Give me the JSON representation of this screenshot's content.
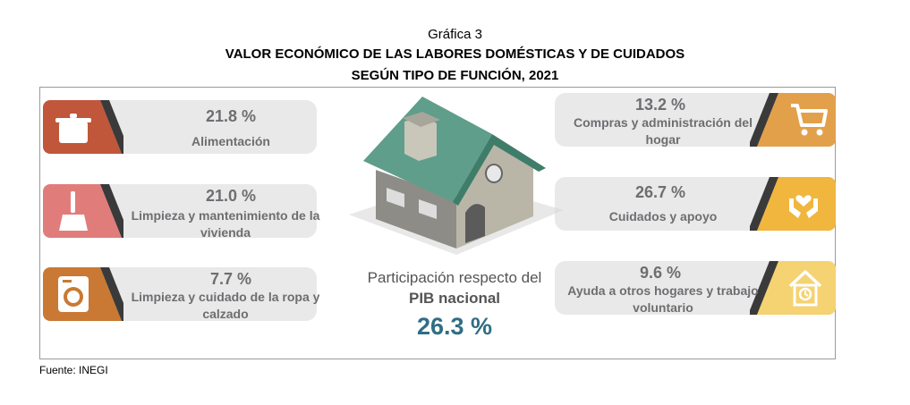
{
  "header": {
    "chart_number": "Gráfica 3",
    "title_line1": "VALOR ECONÓMICO DE LAS LABORES DOMÉSTICAS Y DE CUIDADOS",
    "title_line2": "SEGÚN TIPO DE FUNCIÓN, 2021"
  },
  "chart_data": {
    "type": "infographic",
    "title": "VALOR ECONÓMICO DE LAS LABORES DOMÉSTICAS Y DE CUIDADOS SEGÚN TIPO DE FUNCIÓN, 2021",
    "unit": "%",
    "categories": [
      {
        "label": "Alimentación",
        "value": 21.8,
        "pct_text": "21.8 %",
        "color": "#c0573a",
        "icon": "cooking-pot-icon"
      },
      {
        "label": "Limpieza y mantenimiento de la vivienda",
        "value": 21.0,
        "pct_text": "21.0 %",
        "color": "#e07d7b",
        "icon": "broom-icon"
      },
      {
        "label": "Limpieza y cuidado de la ropa y calzado",
        "value": 7.7,
        "pct_text": "7.7 %",
        "color": "#c97933",
        "icon": "washing-machine-icon"
      },
      {
        "label": "Compras y administración del hogar",
        "value": 13.2,
        "pct_text": "13.2 %",
        "color": "#e3a04a",
        "icon": "shopping-cart-icon"
      },
      {
        "label": "Cuidados y apoyo",
        "value": 26.7,
        "pct_text": "26.7 %",
        "color": "#f0b63e",
        "icon": "caring-hands-icon"
      },
      {
        "label": "Ayuda a otros hogares y trabajo voluntario",
        "value": 9.6,
        "pct_text": "9.6 %",
        "color": "#f5d272",
        "icon": "house-clock-icon"
      }
    ],
    "total": {
      "label_line1": "Participación respecto del",
      "label_line2": "PIB nacional",
      "value": 26.3,
      "value_text": "26.3 %"
    }
  },
  "source": "Fuente: INEGI"
}
